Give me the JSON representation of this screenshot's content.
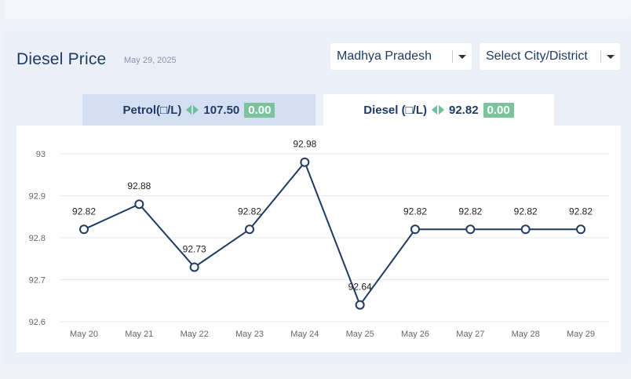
{
  "header": {
    "title": "Diesel Price",
    "date": "May 29, 2025"
  },
  "filters": {
    "state": "Madhya Pradesh",
    "city": "Select City/District"
  },
  "tabs": {
    "petrol": {
      "label": "Petrol(□/L)",
      "price": "107.50",
      "change": "0.00"
    },
    "diesel": {
      "label": "Diesel (□/L)",
      "price": "92.82",
      "change": "0.00"
    }
  },
  "colors": {
    "line": "#1f3b64",
    "badge": "#7cc39d",
    "arrow": "#6cc199",
    "active_tab": "#ffffff",
    "inactive_tab": "#d4e0f2"
  },
  "chart_data": {
    "type": "line",
    "categories": [
      "May 20",
      "May 21",
      "May 22",
      "May 23",
      "May 24",
      "May 25",
      "May 26",
      "May 27",
      "May 28",
      "May 29"
    ],
    "values": [
      92.82,
      92.88,
      92.73,
      92.82,
      92.98,
      92.64,
      92.82,
      92.82,
      92.82,
      92.82
    ],
    "ylim": [
      92.6,
      93
    ],
    "yticks": [
      "92.6",
      "92.7",
      "92.8",
      "92.9",
      "93"
    ],
    "grid": true,
    "data_labels": true,
    "title": "",
    "xlabel": "",
    "ylabel": ""
  }
}
